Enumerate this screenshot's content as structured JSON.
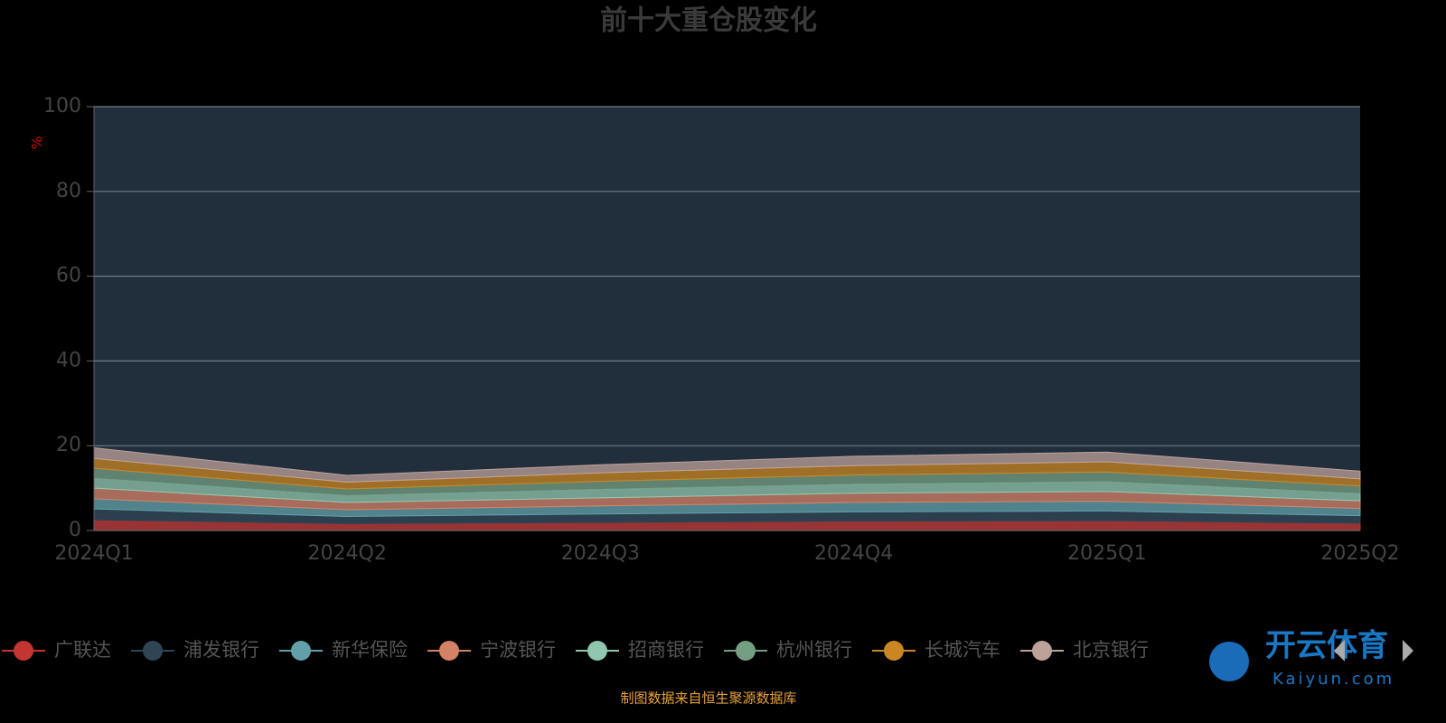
{
  "chart_data": {
    "type": "area",
    "stacked": true,
    "title": "前十大重仓股变化",
    "y_unit": "%",
    "categories": [
      "2024Q1",
      "2024Q2",
      "2024Q3",
      "2024Q4",
      "2025Q1",
      "2025Q2"
    ],
    "series": [
      {
        "name": "广联达",
        "color": "#c23531",
        "values": [
          2.5,
          1.6,
          1.9,
          2.2,
          2.3,
          1.7
        ]
      },
      {
        "name": "浦发银行",
        "color": "#2f4554",
        "values": [
          2.6,
          1.7,
          2.0,
          2.2,
          2.3,
          1.8
        ]
      },
      {
        "name": "新华保险",
        "color": "#61a0a8",
        "values": [
          2.4,
          1.6,
          1.9,
          2.2,
          2.3,
          1.7
        ]
      },
      {
        "name": "宁波银行",
        "color": "#d48265",
        "values": [
          2.5,
          1.7,
          1.9,
          2.2,
          2.3,
          1.8
        ]
      },
      {
        "name": "招商银行",
        "color": "#91c7ae",
        "values": [
          2.3,
          1.6,
          2.0,
          2.1,
          2.3,
          1.7
        ]
      },
      {
        "name": "杭州银行",
        "color": "#749f83",
        "values": [
          2.4,
          1.6,
          1.9,
          2.2,
          2.3,
          1.8
        ]
      },
      {
        "name": "长城汽车",
        "color": "#ca8622",
        "values": [
          2.3,
          1.6,
          2.0,
          2.2,
          2.4,
          1.7
        ]
      },
      {
        "name": "北京银行",
        "color": "#bda29a",
        "values": [
          2.5,
          1.6,
          1.9,
          2.2,
          2.3,
          1.8
        ]
      }
    ],
    "ylim": [
      0,
      100
    ],
    "yticks": [
      0,
      20,
      40,
      60,
      80,
      100
    ],
    "grid": true,
    "legend": "bottom",
    "source": "制图数据来自恒生聚源数据库"
  },
  "watermark": {
    "brand": "开云体育",
    "site": "Kaiyun.com"
  }
}
